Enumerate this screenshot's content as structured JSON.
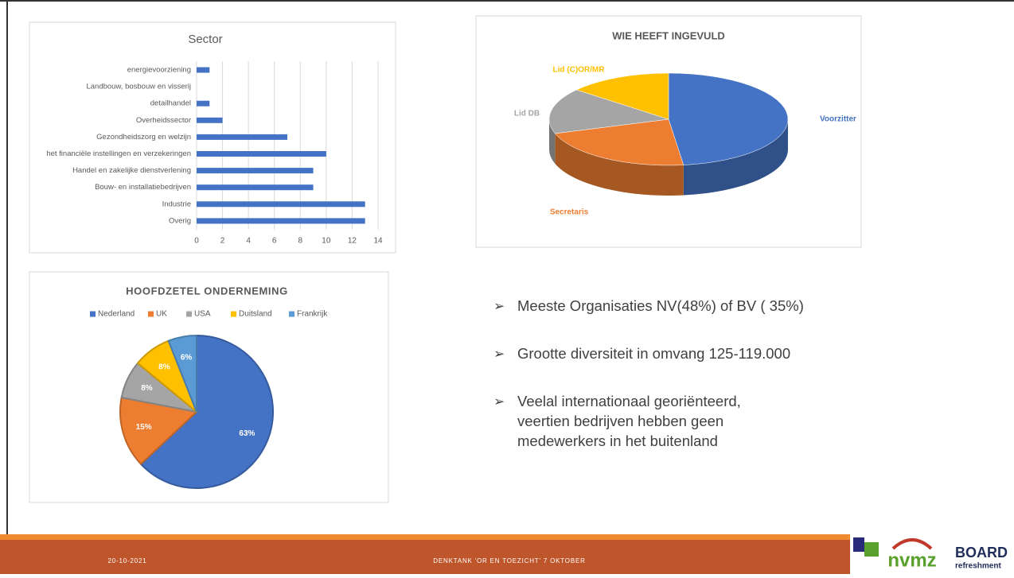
{
  "chart_data": [
    {
      "type": "hbar",
      "title": "Sector",
      "categories": [
        "energievoorziening",
        "Landbouw, bosbouw en visserij",
        "detailhandel",
        "Overheidssector",
        "Gezondheidszorg en welzijn",
        "het financiële instellingen en verzekeringen",
        "Handel en zakelijke dienstverlening",
        "Bouw- en installatiebedrijven",
        "Industrie",
        "Overig"
      ],
      "values": [
        1,
        0,
        1,
        2,
        7,
        10,
        9,
        9,
        13,
        13
      ],
      "color": "#4472c4",
      "xlim": [
        0,
        14
      ],
      "xticks": [
        0,
        2,
        4,
        6,
        8,
        10,
        12,
        14
      ],
      "grid": true
    },
    {
      "type": "pie3d",
      "title": "WIE HEEFT INGEVULD",
      "categories": [
        "Voorzitter",
        "Secretaris",
        "Lid DB",
        "Lid (C)OR/MR"
      ],
      "values": [
        48,
        22,
        16,
        14
      ],
      "colors": [
        "#4472c4",
        "#ed7d31",
        "#a5a5a5",
        "#ffc000"
      ]
    },
    {
      "type": "pie",
      "title": "HOOFDZETEL ONDERNEMING",
      "categories": [
        "Nederland",
        "UK",
        "USA",
        "Duitsland",
        "Frankrijk"
      ],
      "values": [
        63,
        15,
        8,
        8,
        6
      ],
      "value_labels": [
        "63%",
        "15%",
        "8%",
        "8%",
        "6%"
      ],
      "colors": [
        "#4472c4",
        "#ed7d31",
        "#a5a5a5",
        "#ffc000",
        "#5b9bd5"
      ],
      "legend": "top"
    }
  ],
  "bullets": [
    [
      "Meeste Organisaties NV(48%) of BV ( 35%)"
    ],
    [
      "Grootte diversiteit in omvang 125-119.000"
    ],
    [
      "Veelal internationaal georiënteerd,",
      "veertien bedrijven hebben geen",
      "medewerkers in het buitenland"
    ]
  ],
  "footer": {
    "date": "20-10-2021",
    "text": "DENKTANK 'OR EN TOEZICHT' 7 OKTOBER"
  },
  "logos": [
    "nvmz",
    "BOARD",
    "refreshment"
  ]
}
